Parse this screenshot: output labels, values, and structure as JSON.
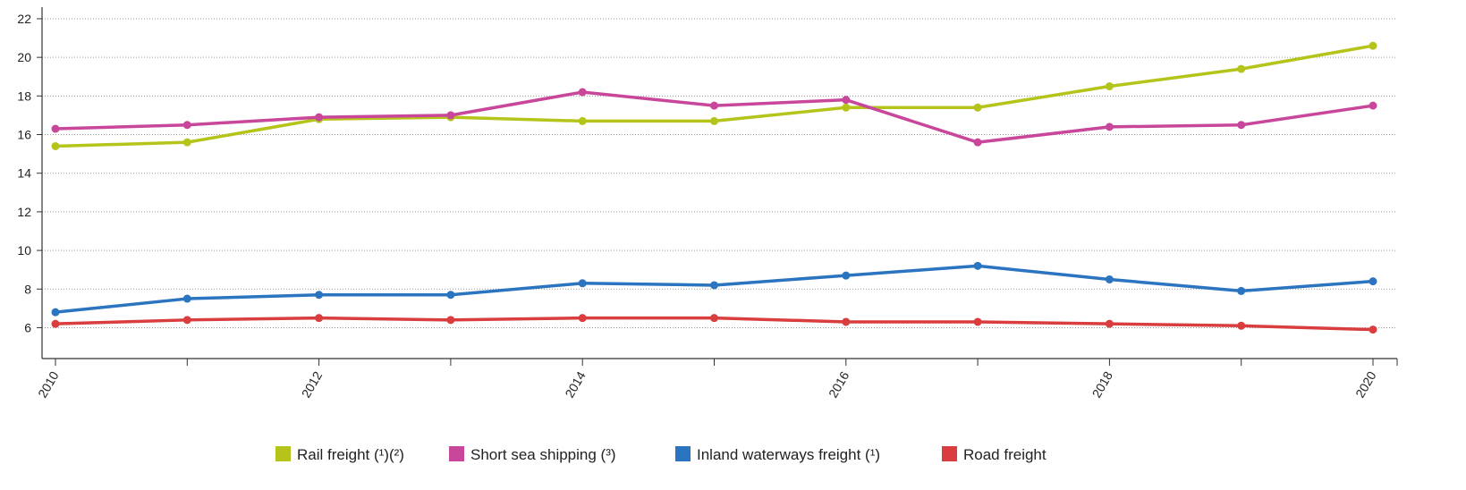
{
  "chart_data": {
    "type": "line",
    "title": "",
    "xlabel": "",
    "ylabel": "",
    "x": [
      2010,
      2011,
      2012,
      2013,
      2014,
      2015,
      2016,
      2017,
      2018,
      2019,
      2020
    ],
    "x_tick_labels": [
      "2010",
      "2012",
      "2014",
      "2016",
      "2018",
      "2020"
    ],
    "y_tick_labels": [
      "6",
      "8",
      "10",
      "12",
      "14",
      "16",
      "18",
      "20",
      "22"
    ],
    "ylim": [
      4.4,
      22.6
    ],
    "grid": "horizontal dotted",
    "legend_position": "bottom",
    "series": [
      {
        "name": "Rail freight (¹)(²)",
        "color": "#b5c41a",
        "values": [
          15.4,
          15.6,
          16.8,
          16.9,
          16.7,
          16.7,
          17.4,
          17.4,
          18.5,
          19.4,
          20.6
        ]
      },
      {
        "name": "Short sea shipping (³)",
        "color": "#c9479b",
        "values": [
          16.3,
          16.5,
          16.9,
          17.0,
          18.2,
          17.5,
          17.8,
          15.6,
          16.4,
          16.5,
          17.5
        ]
      },
      {
        "name": "Inland waterways freight (¹)",
        "color": "#2b74bf",
        "values": [
          6.8,
          7.5,
          7.7,
          7.7,
          8.3,
          8.2,
          8.7,
          9.2,
          8.5,
          7.9,
          8.4
        ]
      },
      {
        "name": "Road freight",
        "color": "#d93d3d",
        "values": [
          6.2,
          6.4,
          6.5,
          6.4,
          6.5,
          6.5,
          6.3,
          6.3,
          6.2,
          6.1,
          5.9
        ]
      }
    ]
  }
}
